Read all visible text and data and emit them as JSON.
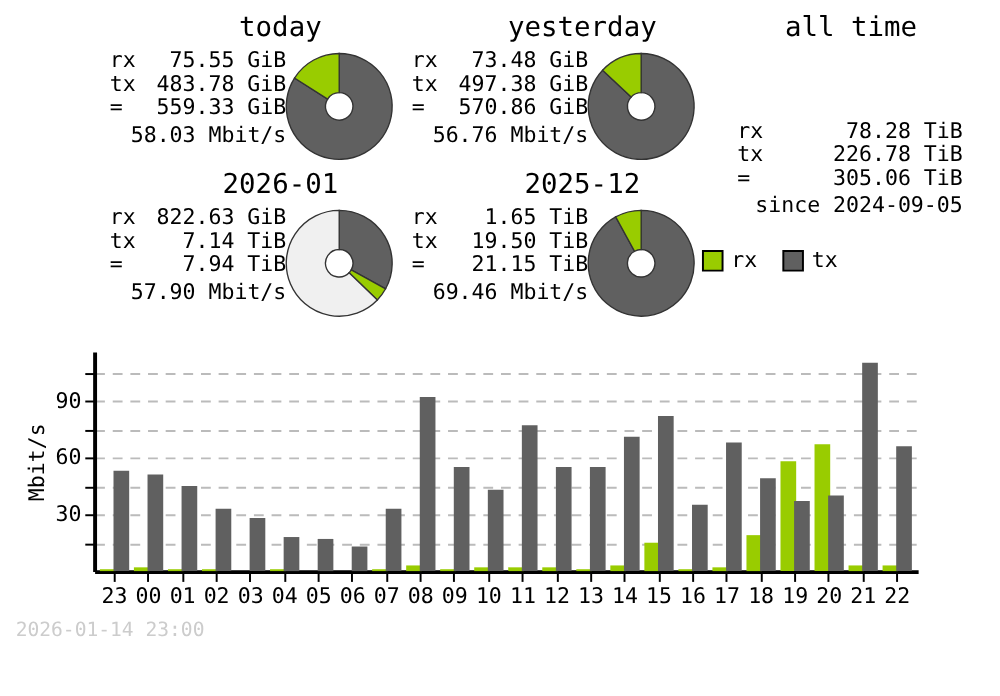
{
  "chart_data": [
    {
      "type": "donut",
      "title": "today",
      "categories": [
        null,
        null
      ],
      "values": [
        84,
        16
      ],
      "colors": [
        "#606060",
        "#99cc00"
      ],
      "annotations": [
        "rx",
        "75.55 GiB",
        "tx",
        "483.78 GiB",
        "=",
        "559.33 GiB",
        "58.03 Mbit/s"
      ]
    },
    {
      "type": "donut",
      "title": "yesterday",
      "categories": [
        null,
        null
      ],
      "values": [
        87,
        13
      ],
      "colors": [
        "#606060",
        "#99cc00"
      ],
      "annotations": [
        "rx",
        "73.48 GiB",
        "tx",
        "497.38 GiB",
        "=",
        "570.86 GiB",
        "56.76 Mbit/s"
      ]
    },
    {
      "type": "other",
      "title": "all time",
      "annotations": [
        "rx",
        "78.28 TiB",
        "tx",
        "226.78 TiB",
        "=",
        "305.06 TiB",
        "since 2024-09-05"
      ]
    },
    {
      "type": "donut",
      "title": "2026-01",
      "categories": [
        null,
        null,
        null
      ],
      "values": [
        33.0,
        4.2,
        62.8
      ],
      "colors": [
        "#606060",
        "#99cc00",
        "#f0f0f0"
      ],
      "annotations": [
        "rx",
        "822.63 GiB",
        "tx",
        "7.14 TiB",
        "=",
        "7.94 TiB",
        "57.90 Mbit/s"
      ]
    },
    {
      "type": "donut",
      "title": "2025-12",
      "categories": [
        null,
        null
      ],
      "values": [
        92,
        8
      ],
      "colors": [
        "#606060",
        "#99cc00"
      ],
      "annotations": [
        "rx",
        "1.65 TiB",
        "tx",
        "19.50 TiB",
        "=",
        "21.15 TiB",
        "69.46 Mbit/s"
      ]
    },
    {
      "type": "bar",
      "ylabel": "Mbit/s",
      "categories": [
        "23",
        "00",
        "01",
        "02",
        "03",
        "04",
        "05",
        "06",
        "07",
        "08",
        "09",
        "10",
        "11",
        "12",
        "13",
        "14",
        "15",
        "16",
        "17",
        "18",
        "19",
        "20",
        "21",
        "22"
      ],
      "series": [
        {
          "name": "rx",
          "color": "#99cc00",
          "values": [
            1,
            2,
            1,
            1,
            0,
            1,
            0,
            0,
            1,
            3,
            1,
            2,
            2,
            2,
            1,
            3,
            15,
            1,
            2,
            19,
            58,
            67,
            3,
            3
          ]
        },
        {
          "name": "tx",
          "color": "#606060",
          "values": [
            53,
            51,
            45,
            33,
            28,
            18,
            17,
            13,
            33,
            92,
            55,
            43,
            77,
            55,
            55,
            71,
            82,
            35,
            68,
            49,
            37,
            40,
            110,
            66
          ]
        }
      ],
      "ylim": [
        0,
        116
      ],
      "yticks": [
        {
          "value": 15,
          "label": null
        },
        30,
        {
          "value": 45,
          "label": null
        },
        60,
        {
          "value": 75,
          "label": null
        },
        90,
        {
          "value": 105,
          "label": null
        }
      ],
      "grid": true,
      "legend": "top right",
      "annotations": [
        "2026-01-14 23:00"
      ]
    }
  ]
}
